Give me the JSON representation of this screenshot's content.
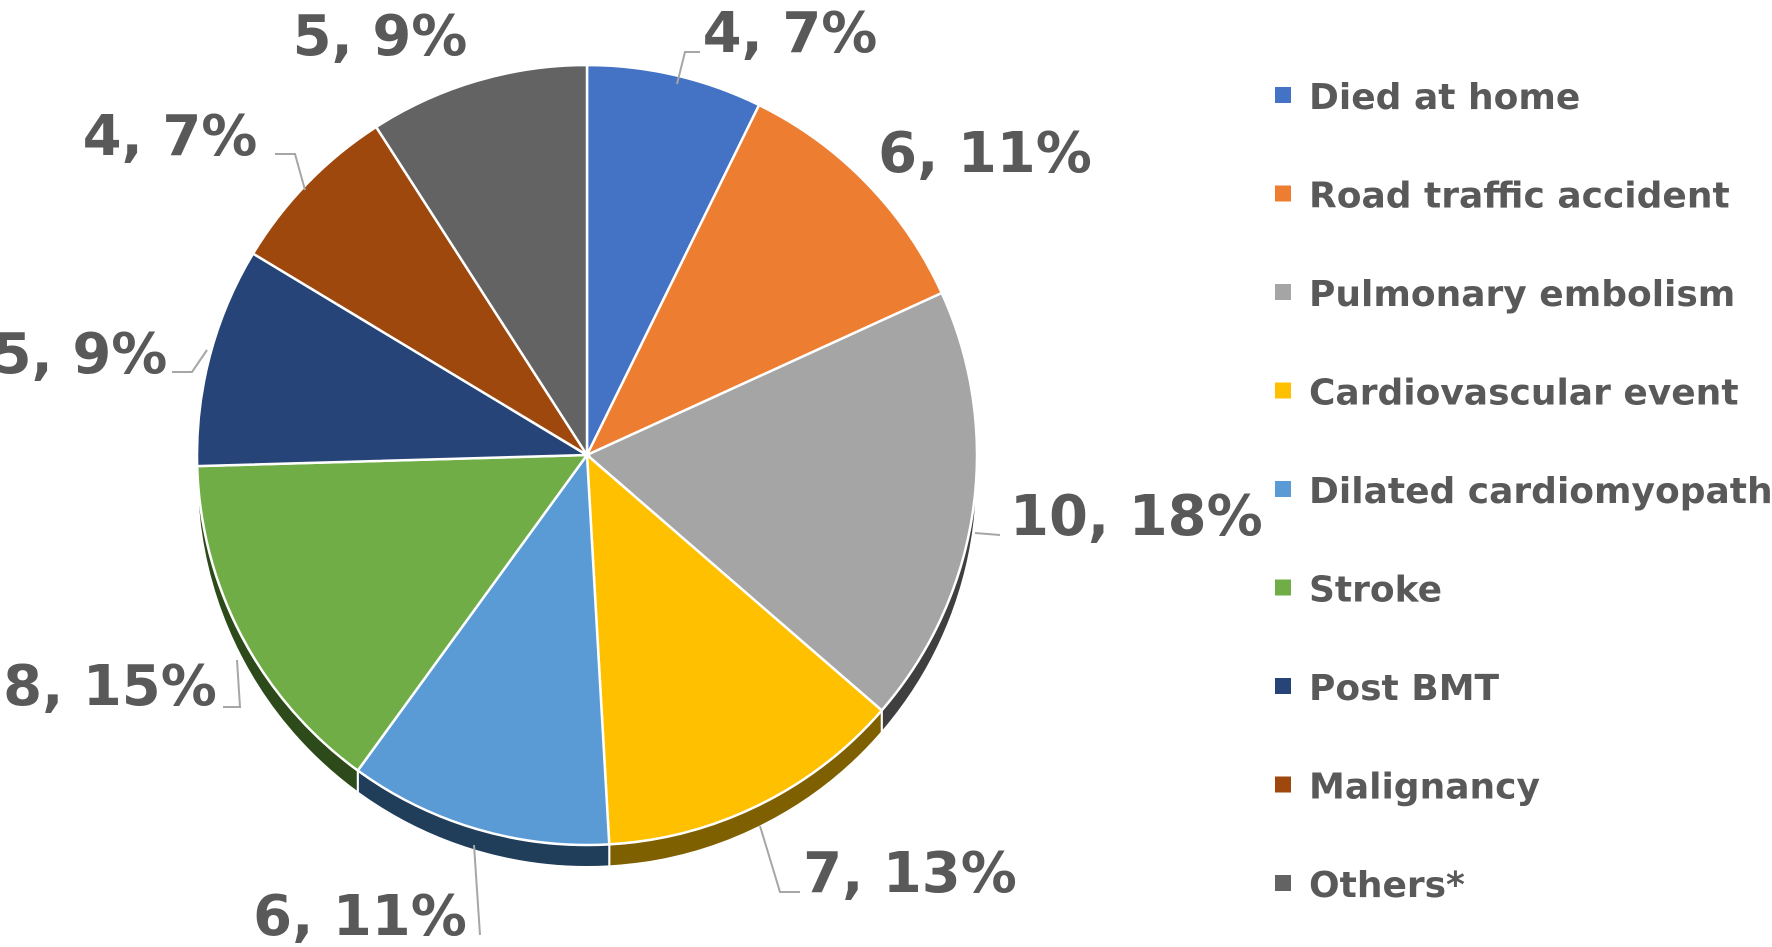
{
  "chart_data": {
    "type": "pie",
    "title": "",
    "legend_position": "right",
    "slices": [
      {
        "name": "Died at home",
        "value": 4,
        "percent": "7%",
        "label": "4, 7%",
        "color": "#4472C4",
        "side_color": "#2F5597"
      },
      {
        "name": "Road traffic accident",
        "value": 6,
        "percent": "11%",
        "label": "6, 11%",
        "color": "#ED7D31",
        "side_color": "#A35420"
      },
      {
        "name": "Pulmonary embolism",
        "value": 10,
        "percent": "18%",
        "label": "10, 18%",
        "color": "#A5A5A5",
        "side_color": "#3F3F3F"
      },
      {
        "name": "Cardiovascular event",
        "value": 7,
        "percent": "13%",
        "label": "7, 13%",
        "color": "#FFC000",
        "side_color": "#7F6000"
      },
      {
        "name": "Dilated cardiomyopathy",
        "value": 6,
        "percent": "11%",
        "label": "6, 11%",
        "color": "#5B9BD5",
        "side_color": "#203D5A"
      },
      {
        "name": "Stroke",
        "value": 8,
        "percent": "15%",
        "label": "8, 15%",
        "color": "#70AD47",
        "side_color": "#2C4A1A"
      },
      {
        "name": "Post BMT",
        "value": 5,
        "percent": "9%",
        "label": "5, 9%",
        "color": "#264478",
        "side_color": "#16284A"
      },
      {
        "name": "Malignancy",
        "value": 4,
        "percent": "7%",
        "label": "4, 7%",
        "color": "#9E480E",
        "side_color": "#5E2A08"
      },
      {
        "name": "Others*",
        "value": 5,
        "percent": "9%",
        "label": "5, 9%",
        "color": "#636363",
        "side_color": "#3A3A3A"
      }
    ]
  }
}
